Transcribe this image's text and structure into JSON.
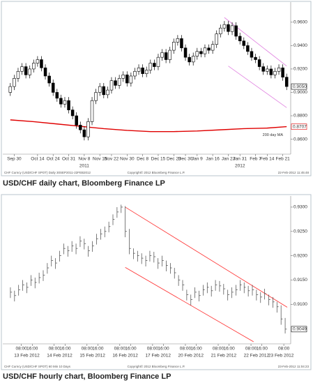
{
  "chart_data": [
    {
      "type": "candlestick",
      "caption": "USD/CHF daily chart, Bloomberg Finance LP",
      "footer": [
        "CHF Curncy (USD/CHF SPOT) Daily 30SEP2011-22FEB2012",
        "Copyright© 2012 Bloomberg Finance L.P.",
        "22-Feb-2012 11:45:48"
      ],
      "up_color": "#ffffff",
      "down_color": "#000000",
      "open": [
        0.9,
        0.905,
        0.912,
        0.918,
        0.922,
        0.915,
        0.92,
        0.925,
        0.928,
        0.921,
        0.914,
        0.908,
        0.9,
        0.895,
        0.89,
        0.893,
        0.885,
        0.88,
        0.872,
        0.868,
        0.862,
        0.875,
        0.893,
        0.9,
        0.905,
        0.898,
        0.902,
        0.91,
        0.906,
        0.912,
        0.915,
        0.908,
        0.914,
        0.918,
        0.921,
        0.916,
        0.919,
        0.925,
        0.922,
        0.93,
        0.934,
        0.928,
        0.936,
        0.943,
        0.946,
        0.938,
        0.93,
        0.926,
        0.931,
        0.935,
        0.933,
        0.938,
        0.936,
        0.941,
        0.95,
        0.955,
        0.958,
        0.952,
        0.957,
        0.948,
        0.944,
        0.94,
        0.935,
        0.93,
        0.928,
        0.922,
        0.918,
        0.92,
        0.915,
        0.918,
        0.921,
        0.913
      ],
      "high": [
        0.908,
        0.915,
        0.921,
        0.925,
        0.925,
        0.923,
        0.928,
        0.931,
        0.931,
        0.924,
        0.917,
        0.911,
        0.903,
        0.898,
        0.896,
        0.896,
        0.888,
        0.883,
        0.875,
        0.871,
        0.878,
        0.896,
        0.903,
        0.908,
        0.908,
        0.905,
        0.913,
        0.913,
        0.915,
        0.918,
        0.918,
        0.917,
        0.921,
        0.924,
        0.924,
        0.922,
        0.928,
        0.928,
        0.933,
        0.937,
        0.937,
        0.939,
        0.946,
        0.949,
        0.949,
        0.941,
        0.933,
        0.934,
        0.938,
        0.938,
        0.941,
        0.941,
        0.944,
        0.953,
        0.958,
        0.961,
        0.961,
        0.96,
        0.96,
        0.951,
        0.947,
        0.943,
        0.938,
        0.933,
        0.931,
        0.925,
        0.923,
        0.923,
        0.921,
        0.924,
        0.924,
        0.916
      ],
      "low": [
        0.897,
        0.902,
        0.909,
        0.915,
        0.912,
        0.912,
        0.917,
        0.922,
        0.918,
        0.911,
        0.905,
        0.897,
        0.892,
        0.887,
        0.887,
        0.882,
        0.877,
        0.869,
        0.865,
        0.859,
        0.859,
        0.872,
        0.89,
        0.897,
        0.895,
        0.895,
        0.899,
        0.903,
        0.903,
        0.909,
        0.905,
        0.905,
        0.911,
        0.915,
        0.913,
        0.913,
        0.916,
        0.919,
        0.919,
        0.927,
        0.925,
        0.925,
        0.933,
        0.94,
        0.935,
        0.927,
        0.923,
        0.923,
        0.928,
        0.93,
        0.93,
        0.933,
        0.933,
        0.938,
        0.947,
        0.952,
        0.949,
        0.949,
        0.945,
        0.941,
        0.937,
        0.932,
        0.927,
        0.925,
        0.919,
        0.915,
        0.915,
        0.912,
        0.912,
        0.915,
        0.91,
        0.902
      ],
      "close": [
        0.905,
        0.912,
        0.918,
        0.922,
        0.915,
        0.92,
        0.925,
        0.928,
        0.921,
        0.914,
        0.908,
        0.9,
        0.895,
        0.89,
        0.893,
        0.885,
        0.88,
        0.872,
        0.868,
        0.862,
        0.875,
        0.893,
        0.9,
        0.905,
        0.898,
        0.902,
        0.91,
        0.906,
        0.912,
        0.915,
        0.908,
        0.914,
        0.918,
        0.921,
        0.916,
        0.919,
        0.925,
        0.922,
        0.93,
        0.934,
        0.928,
        0.936,
        0.943,
        0.946,
        0.938,
        0.93,
        0.926,
        0.931,
        0.935,
        0.933,
        0.938,
        0.936,
        0.941,
        0.95,
        0.955,
        0.958,
        0.952,
        0.957,
        0.948,
        0.944,
        0.94,
        0.935,
        0.93,
        0.928,
        0.922,
        0.918,
        0.92,
        0.915,
        0.918,
        0.921,
        0.913,
        0.905
      ],
      "xlim": [
        -0.5,
        71.5
      ],
      "xticks": [
        {
          "value": 1,
          "label": "Sep 30"
        },
        {
          "value": 7,
          "label": "Oct 14"
        },
        {
          "value": 11,
          "label": "Oct 24"
        },
        {
          "value": 15,
          "label": "Oct 31"
        },
        {
          "value": 19,
          "label": "Nov 8"
        },
        {
          "value": 23,
          "label": "Nov 15"
        },
        {
          "value": 26,
          "label": "Nov 22"
        },
        {
          "value": 30,
          "label": "Nov 30"
        },
        {
          "value": 34,
          "label": "Dec 8"
        },
        {
          "value": 38,
          "label": "Dec 15"
        },
        {
          "value": 42,
          "label": "Dec 23"
        },
        {
          "value": 45,
          "label": "Dec 30"
        },
        {
          "value": 48,
          "label": "Jan 9"
        },
        {
          "value": 52,
          "label": "Jan 16"
        },
        {
          "value": 56,
          "label": "Jan 23"
        },
        {
          "value": 59,
          "label": "Jan 31"
        },
        {
          "value": 63,
          "label": "Feb 7"
        },
        {
          "value": 66,
          "label": "Feb 14"
        },
        {
          "value": 70,
          "label": "Feb 21"
        }
      ],
      "group_ticks": [
        {
          "value": 19,
          "label": "2011"
        },
        {
          "value": 59,
          "label": "2012"
        }
      ],
      "ylim": [
        0.849,
        0.976
      ],
      "yticks": [
        {
          "value": 0.96,
          "label": "0.9600"
        },
        {
          "value": 0.94,
          "label": "0.9400"
        },
        {
          "value": 0.92,
          "label": "0.9200"
        },
        {
          "value": 0.9,
          "label": "0.9000"
        },
        {
          "value": 0.88,
          "label": "0.8800"
        },
        {
          "value": 0.86,
          "label": "0.8600"
        }
      ],
      "price_markers": [
        {
          "value": 0.905,
          "label": "0.9050",
          "color": "#000000"
        },
        {
          "value": 0.8707,
          "label": "0.8707",
          "color": "#e00000"
        }
      ],
      "moving_average": {
        "name": "200 day MA",
        "color": "#e00000",
        "x": [
          0,
          6,
          12,
          18,
          24,
          30,
          36,
          42,
          48,
          54,
          60,
          66,
          71
        ],
        "values": [
          0.8765,
          0.875,
          0.873,
          0.871,
          0.869,
          0.8675,
          0.8665,
          0.8665,
          0.867,
          0.868,
          0.869,
          0.8695,
          0.8707
        ]
      },
      "trendlines": {
        "color": "#e080e0",
        "lines": [
          {
            "x": [
              55,
              71
            ],
            "values": [
              0.964,
              0.9225
            ]
          },
          {
            "x": [
              56,
              71
            ],
            "values": [
              0.9225,
              0.887
            ]
          }
        ]
      }
    },
    {
      "type": "ohlc",
      "caption": "USD/CHF hourly chart, Bloomberg Finance LP",
      "footer": [
        "CHF Curncy (USD/CHF SPOT) 60 Min 10 Days",
        "Copyright© 2012 Bloomberg Finance L.P.",
        "23-Feb-2012 11:04:23"
      ],
      "bar_color": "#444444",
      "high": [
        0.9135,
        0.9128,
        0.914,
        0.915,
        0.9145,
        0.916,
        0.9155,
        0.9165,
        0.917,
        0.9185,
        0.92,
        0.9195,
        0.921,
        0.9225,
        0.922,
        0.923,
        0.9225,
        0.924,
        0.9235,
        0.922,
        0.923,
        0.9245,
        0.9255,
        0.926,
        0.927,
        0.9285,
        0.93,
        0.9305,
        0.9302,
        0.9255,
        0.9215,
        0.921,
        0.9205,
        0.92,
        0.921,
        0.9208,
        0.9195,
        0.92,
        0.919,
        0.9185,
        0.9175,
        0.916,
        0.915,
        0.913,
        0.912,
        0.9135,
        0.9128,
        0.914,
        0.9145,
        0.9138,
        0.915,
        0.9148,
        0.9142,
        0.913,
        0.9135,
        0.914,
        0.915,
        0.9145,
        0.9138,
        0.914,
        0.913,
        0.9125,
        0.9132,
        0.912,
        0.9115,
        0.9105,
        0.9098,
        0.9072
      ],
      "low": [
        0.9113,
        0.9106,
        0.9118,
        0.9128,
        0.9123,
        0.9138,
        0.9133,
        0.9143,
        0.9148,
        0.9163,
        0.9178,
        0.9173,
        0.9188,
        0.9203,
        0.9198,
        0.9208,
        0.9203,
        0.9218,
        0.9213,
        0.9198,
        0.9208,
        0.9223,
        0.9233,
        0.9238,
        0.9248,
        0.9263,
        0.9278,
        0.9288,
        0.9238,
        0.9203,
        0.9193,
        0.9188,
        0.9183,
        0.9178,
        0.9188,
        0.9186,
        0.9173,
        0.9178,
        0.9168,
        0.9163,
        0.9153,
        0.9138,
        0.9128,
        0.9108,
        0.9098,
        0.9113,
        0.9106,
        0.9118,
        0.9123,
        0.9116,
        0.9128,
        0.9126,
        0.912,
        0.9108,
        0.9113,
        0.9118,
        0.9128,
        0.9123,
        0.9116,
        0.9118,
        0.9108,
        0.9103,
        0.911,
        0.9098,
        0.9093,
        0.9083,
        0.9058,
        0.904
      ],
      "close": [
        0.9125,
        0.9118,
        0.913,
        0.914,
        0.9135,
        0.915,
        0.9145,
        0.9155,
        0.916,
        0.9175,
        0.919,
        0.9185,
        0.92,
        0.9215,
        0.921,
        0.922,
        0.9215,
        0.923,
        0.9225,
        0.921,
        0.922,
        0.9235,
        0.9245,
        0.925,
        0.926,
        0.9275,
        0.929,
        0.93,
        0.925,
        0.9215,
        0.9205,
        0.92,
        0.9195,
        0.919,
        0.92,
        0.9198,
        0.9185,
        0.919,
        0.918,
        0.9175,
        0.9165,
        0.915,
        0.914,
        0.912,
        0.911,
        0.9125,
        0.9118,
        0.913,
        0.9135,
        0.9128,
        0.914,
        0.9138,
        0.9132,
        0.912,
        0.9125,
        0.913,
        0.914,
        0.9135,
        0.9128,
        0.913,
        0.912,
        0.9115,
        0.9122,
        0.911,
        0.9105,
        0.9095,
        0.907,
        0.9049
      ],
      "xlim": [
        -0.5,
        67.5
      ],
      "xticks": [
        {
          "value": 2.67,
          "label": "08:00"
        },
        {
          "value": 5.33,
          "label": "16:00"
        },
        {
          "value": 10.67,
          "label": "08:00"
        },
        {
          "value": 13.33,
          "label": "16:00"
        },
        {
          "value": 18.67,
          "label": "08:00"
        },
        {
          "value": 21.33,
          "label": "16:00"
        },
        {
          "value": 26.67,
          "label": "08:00"
        },
        {
          "value": 29.33,
          "label": "16:00"
        },
        {
          "value": 34.67,
          "label": "08:00"
        },
        {
          "value": 37.33,
          "label": "16:00"
        },
        {
          "value": 42.67,
          "label": "08:00"
        },
        {
          "value": 45.33,
          "label": "16:00"
        },
        {
          "value": 50.67,
          "label": "08:00"
        },
        {
          "value": 53.33,
          "label": "16:00"
        },
        {
          "value": 58.67,
          "label": "08:00"
        },
        {
          "value": 61.33,
          "label": "16:00"
        },
        {
          "value": 66.67,
          "label": "08:00"
        }
      ],
      "group_ticks": [
        {
          "value": 4,
          "label": "13 Feb 2012"
        },
        {
          "value": 12,
          "label": "14 Feb 2012"
        },
        {
          "value": 20,
          "label": "15 Feb 2012"
        },
        {
          "value": 28,
          "label": "16 Feb 2012"
        },
        {
          "value": 36,
          "label": "17 Feb 2012"
        },
        {
          "value": 44,
          "label": "20 Feb 2012"
        },
        {
          "value": 52,
          "label": "21 Feb 2012"
        },
        {
          "value": 60,
          "label": "22 Feb 2012"
        },
        {
          "value": 66,
          "label": "23 Feb 2012"
        }
      ],
      "ylim": [
        0.9023,
        0.932
      ],
      "yticks": [
        {
          "value": 0.93,
          "label": "0.9300"
        },
        {
          "value": 0.925,
          "label": "0.9250"
        },
        {
          "value": 0.92,
          "label": "0.9200"
        },
        {
          "value": 0.915,
          "label": "0.9150"
        },
        {
          "value": 0.91,
          "label": "0.9100"
        }
      ],
      "price_markers": [
        {
          "value": 0.9049,
          "label": "0.9049",
          "color": "#000000"
        }
      ],
      "trendlines": {
        "color": "#ff3030",
        "lines": [
          {
            "x": [
              28,
              67.5
            ],
            "values": [
              0.93,
              0.9094
            ]
          },
          {
            "x": [
              28,
              59.3
            ],
            "values": [
              0.9176,
              0.9023
            ]
          }
        ]
      }
    }
  ]
}
